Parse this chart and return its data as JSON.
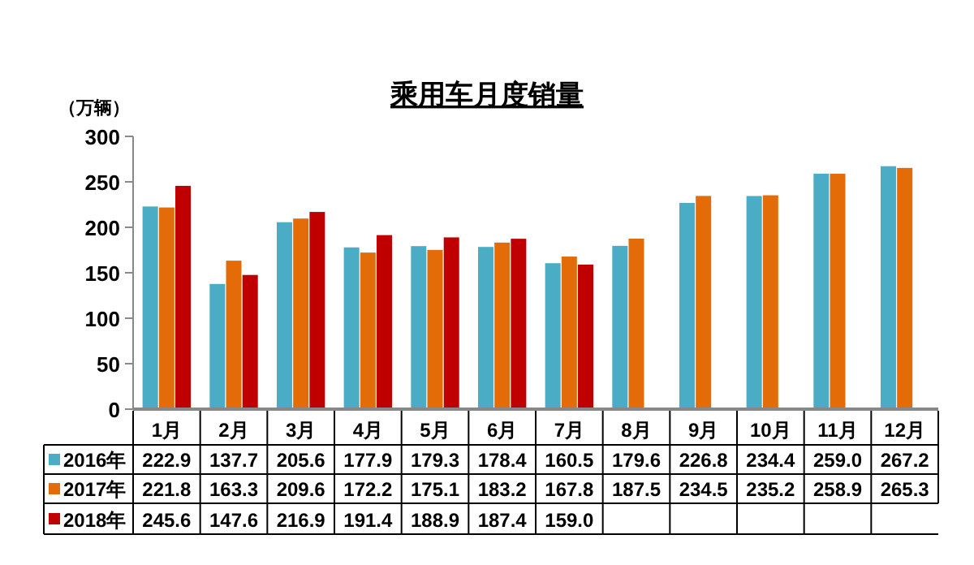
{
  "chart_data": {
    "type": "bar",
    "title": "乘用车月度销量",
    "ylabel": "（万辆）",
    "categories": [
      "1月",
      "2月",
      "3月",
      "4月",
      "5月",
      "6月",
      "7月",
      "8月",
      "9月",
      "10月",
      "11月",
      "12月"
    ],
    "series": [
      {
        "name": "2016年",
        "color": "#4bacc6",
        "values": [
          222.9,
          137.7,
          205.6,
          177.9,
          179.3,
          178.4,
          160.5,
          179.6,
          226.8,
          234.4,
          259.0,
          267.2
        ],
        "value_labels": [
          "222.9",
          "137.7",
          "205.6",
          "177.9",
          "179.3",
          "178.4",
          "160.5",
          "179.6",
          "226.8",
          "234.4",
          "259.0",
          "267.2"
        ]
      },
      {
        "name": "2017年",
        "color": "#e36c09",
        "values": [
          221.8,
          163.3,
          209.6,
          172.2,
          175.1,
          183.2,
          167.8,
          187.5,
          234.5,
          235.2,
          258.9,
          265.3
        ],
        "value_labels": [
          "221.8",
          "163.3",
          "209.6",
          "172.2",
          "175.1",
          "183.2",
          "167.8",
          "187.5",
          "234.5",
          "235.2",
          "258.9",
          "265.3"
        ]
      },
      {
        "name": "2018年",
        "color": "#c00000",
        "values": [
          245.6,
          147.6,
          216.9,
          191.4,
          188.9,
          187.4,
          159.0,
          null,
          null,
          null,
          null,
          null
        ],
        "value_labels": [
          "245.6",
          "147.6",
          "216.9",
          "191.4",
          "188.9",
          "187.4",
          "159.0",
          null,
          null,
          null,
          null,
          null
        ]
      }
    ],
    "ylim": [
      0,
      300
    ],
    "yticks": [
      0,
      50,
      100,
      150,
      200,
      250,
      300
    ],
    "grid": false,
    "legend": "bottom"
  }
}
